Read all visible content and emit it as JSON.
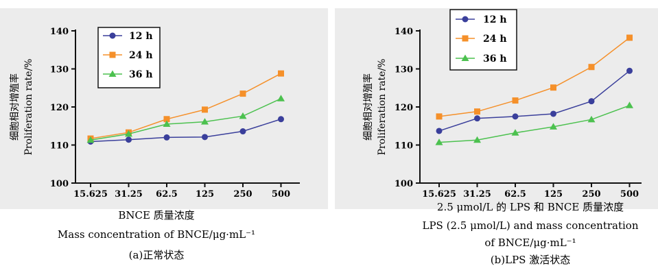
{
  "colors": {
    "12h": "#3a3f9b",
    "24h": "#f5902a",
    "36h": "#4cc14f",
    "background": "#ececec"
  },
  "chart_data": [
    {
      "type": "line",
      "categories": [
        "15.625",
        "31.25",
        "62.5",
        "125",
        "250",
        "500"
      ],
      "ylim": [
        100,
        140
      ],
      "yticks": [
        100,
        110,
        120,
        130,
        140
      ],
      "ylabel_cn": "细胞相对增殖率",
      "ylabel_en": "Proliferation rate/%",
      "legend_position": "top-left",
      "caption": [
        "BNCE 质量浓度",
        "Mass concentration of BNCE/μg·mL⁻¹",
        "(a)正常状态"
      ],
      "series": [
        {
          "name": "12 h",
          "values": [
            110.9,
            111.4,
            112.0,
            112.1,
            113.6,
            116.8
          ]
        },
        {
          "name": "24 h",
          "values": [
            111.7,
            113.3,
            116.8,
            119.3,
            123.5,
            128.8
          ]
        },
        {
          "name": "36 h",
          "values": [
            111.3,
            112.9,
            115.5,
            116.1,
            117.6,
            122.2
          ]
        }
      ]
    },
    {
      "type": "line",
      "categories": [
        "15.625",
        "31.25",
        "62.5",
        "125",
        "250",
        "500"
      ],
      "ylim": [
        100,
        140
      ],
      "yticks": [
        100,
        110,
        120,
        130,
        140
      ],
      "ylabel_cn": "细胞相对增殖率",
      "ylabel_en": "Proliferation rate/%",
      "legend_position": "top-left",
      "caption": [
        "2.5 μmol/L 的 LPS 和 BNCE 质量浓度",
        "LPS (2.5 μmol/L) and mass concentration",
        "of BNCE/μg·mL⁻¹",
        "(b)LPS 激活状态"
      ],
      "series": [
        {
          "name": "12 h",
          "values": [
            113.7,
            117.0,
            117.5,
            118.2,
            121.5,
            129.5
          ]
        },
        {
          "name": "24 h",
          "values": [
            117.5,
            118.8,
            121.7,
            125.1,
            130.5,
            138.2
          ]
        },
        {
          "name": "36 h",
          "values": [
            110.7,
            111.3,
            113.2,
            114.8,
            116.7,
            120.4
          ]
        }
      ]
    }
  ]
}
